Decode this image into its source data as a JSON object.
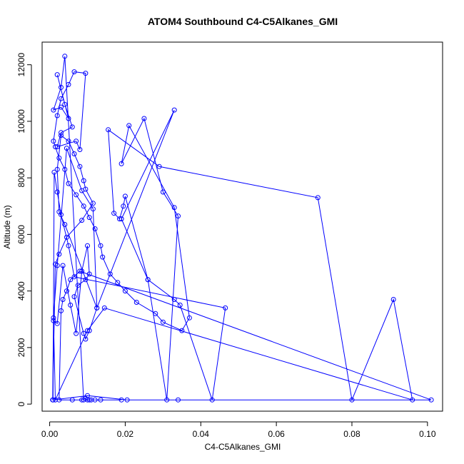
{
  "chart_data": {
    "type": "line",
    "title": "ATOM4 Southbound C4-C5Alkanes_GMI",
    "xlabel": "C4-C5Alkanes_GMI",
    "ylabel": "Altitude (m)",
    "xlim": [
      -0.002,
      0.104
    ],
    "ylim": [
      -250,
      12800
    ],
    "xticks": [
      0.0,
      0.02,
      0.04,
      0.06,
      0.08,
      0.1
    ],
    "xtick_labels": [
      "0.00",
      "0.02",
      "0.04",
      "0.06",
      "0.08",
      "0.10"
    ],
    "yticks": [
      0,
      2000,
      4000,
      6000,
      8000,
      10000,
      12000
    ],
    "ytick_labels": [
      "0",
      "2000",
      "4000",
      "6000",
      "8000",
      "10000",
      "12000"
    ],
    "grid": false,
    "color": "#0000ff",
    "series": [
      {
        "x": [
          0.009,
          0.004,
          0.003,
          0.001,
          0.003,
          0.005,
          0.002,
          0.004,
          0.006,
          0.003,
          0.002,
          0.007,
          0.008,
          0.0095,
          0.0065,
          0.005,
          0.003,
          0.002,
          0.001,
          0.0015,
          0.0025,
          0.004,
          0.005,
          0.007,
          0.009,
          0.0105,
          0.012,
          0.0135,
          0.014,
          0.016,
          0.018,
          0.02,
          0.023,
          0.028,
          0.03,
          0.035,
          0.037,
          0.033,
          0.021,
          0.019,
          0.025,
          0.03,
          0.034,
          0.031,
          0.026,
          0.02,
          0.0195,
          0.0185,
          0.017,
          0.0155,
          0.029,
          0.071,
          0.08,
          0.091,
          0.096,
          0.0145,
          0.01,
          0.0015,
          0.001,
          0.002,
          0.0045,
          0.0085,
          0.0115,
          0.0125,
          0.004,
          0.0025,
          0.002,
          0.003,
          0.005,
          0.0065,
          0.008,
          0.009,
          0.0095,
          0.0115,
          0.0085,
          0.0045,
          0.0025,
          0.0015,
          0.0008,
          0.001,
          0.002,
          0.0035,
          0.0055,
          0.007,
          0.0085,
          0.01,
          0.0105,
          0.0095,
          0.0075,
          0.0065,
          0.009,
          0.0095,
          0.0105,
          0.0125,
          0.033,
          0.019,
          0.026,
          0.033,
          0.0345,
          0.043,
          0.0465,
          0.0065,
          0.005,
          0.003,
          0.002,
          0.0012,
          0.0009,
          0.01,
          0.0205,
          0.034,
          0.101,
          0.008,
          0.0055,
          0.0045,
          0.0035,
          0.003,
          0.0025,
          0.006,
          0.0085,
          0.0095,
          0.01,
          0.0105,
          0.011,
          0.012,
          0.0135,
          0.019
        ],
        "y": [
          150,
          12300,
          11200,
          10400,
          10500,
          10100,
          11650,
          10600,
          9800,
          9600,
          9100,
          9300,
          9000,
          11700,
          11750,
          11300,
          10800,
          10200,
          9300,
          9100,
          8700,
          8300,
          7800,
          7400,
          7000,
          6600,
          6200,
          5600,
          5200,
          4600,
          4300,
          4000,
          3600,
          3200,
          2900,
          2600,
          3050,
          6950,
          9850,
          8500,
          10100,
          7500,
          6650,
          150,
          4400,
          7350,
          7000,
          6550,
          6750,
          9700,
          8400,
          7300,
          150,
          3700,
          150,
          3400,
          2600,
          150,
          3050,
          4900,
          9050,
          7550,
          6900,
          3400,
          6350,
          6800,
          8300,
          9500,
          9300,
          8850,
          8400,
          7900,
          7600,
          7100,
          6500,
          5900,
          5300,
          4950,
          150,
          2950,
          2850,
          4900,
          3500,
          2500,
          4700,
          5600,
          4600,
          4400,
          4200,
          3800,
          2500,
          2300,
          2600,
          3400,
          10400,
          6550,
          4400,
          3700,
          3500,
          150,
          3400,
          4500,
          5600,
          6700,
          7500,
          8200,
          150,
          300,
          150,
          150,
          150,
          4700,
          4400,
          4000,
          3700,
          3300,
          150,
          150,
          150,
          200,
          150,
          150,
          150,
          150,
          150,
          150
        ]
      }
    ]
  }
}
